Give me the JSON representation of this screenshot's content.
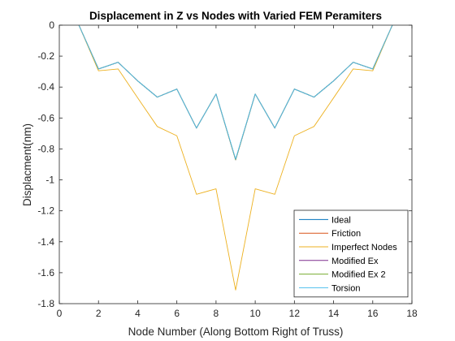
{
  "chart_data": {
    "type": "line",
    "title": "Displacement in Z vs Nodes with Varied FEM Peramiters",
    "xlabel": "Node Number (Along Bottom Right of Truss)",
    "ylabel": "Displacment(nm)",
    "xlim": [
      0,
      18
    ],
    "ylim": [
      -1.8,
      0
    ],
    "xticks": [
      0,
      2,
      4,
      6,
      8,
      10,
      12,
      14,
      16,
      18
    ],
    "yticks": [
      0,
      -0.2,
      -0.4,
      -0.6,
      -0.8,
      -1,
      -1.2,
      -1.4,
      -1.6,
      -1.8
    ],
    "xtick_labels": [
      "0",
      "2",
      "4",
      "6",
      "8",
      "10",
      "12",
      "14",
      "16",
      "18"
    ],
    "ytick_labels": [
      "0",
      "-0.2",
      "-0.4",
      "-0.6",
      "-0.8",
      "-1",
      "-1.2",
      "-1.4",
      "-1.6",
      "-1.8"
    ],
    "grid": false,
    "legend_position": "bottom-right",
    "x": [
      1,
      2,
      3,
      4,
      5,
      6,
      7,
      8,
      9,
      10,
      11,
      12,
      13,
      14,
      15,
      16,
      17
    ],
    "series": [
      {
        "name": "Ideal",
        "color": "#0072BD",
        "values": [
          0,
          -0.283,
          -0.24,
          -0.36,
          -0.465,
          -0.413,
          -0.665,
          -0.445,
          -0.87,
          -0.445,
          -0.665,
          -0.413,
          -0.465,
          -0.36,
          -0.24,
          -0.283,
          0
        ]
      },
      {
        "name": "Friction",
        "color": "#D95319",
        "values": [
          0,
          -0.283,
          -0.24,
          -0.36,
          -0.465,
          -0.413,
          -0.665,
          -0.445,
          -0.87,
          -0.445,
          -0.665,
          -0.413,
          -0.465,
          -0.36,
          -0.24,
          -0.283,
          0
        ]
      },
      {
        "name": "Imperfect Nodes",
        "color": "#EDB120",
        "values": [
          0,
          -0.295,
          -0.283,
          -0.47,
          -0.655,
          -0.715,
          -1.093,
          -1.058,
          -1.712,
          -1.058,
          -1.093,
          -0.715,
          -0.655,
          -0.47,
          -0.283,
          -0.295,
          0
        ]
      },
      {
        "name": "Modified Ex",
        "color": "#7E2F8E",
        "values": [
          0,
          -0.283,
          -0.24,
          -0.36,
          -0.465,
          -0.413,
          -0.665,
          -0.445,
          -0.87,
          -0.445,
          -0.665,
          -0.413,
          -0.465,
          -0.36,
          -0.24,
          -0.283,
          0
        ]
      },
      {
        "name": "Modified Ex 2",
        "color": "#77AC30",
        "values": [
          0,
          -0.283,
          -0.24,
          -0.36,
          -0.465,
          -0.413,
          -0.665,
          -0.445,
          -0.87,
          -0.445,
          -0.665,
          -0.413,
          -0.465,
          -0.36,
          -0.24,
          -0.283,
          0
        ]
      },
      {
        "name": "Torsion",
        "color": "#4DBEEE",
        "values": [
          0,
          -0.283,
          -0.24,
          -0.36,
          -0.465,
          -0.413,
          -0.665,
          -0.445,
          -0.865,
          -0.445,
          -0.665,
          -0.413,
          -0.465,
          -0.36,
          -0.24,
          -0.283,
          0
        ]
      }
    ]
  }
}
